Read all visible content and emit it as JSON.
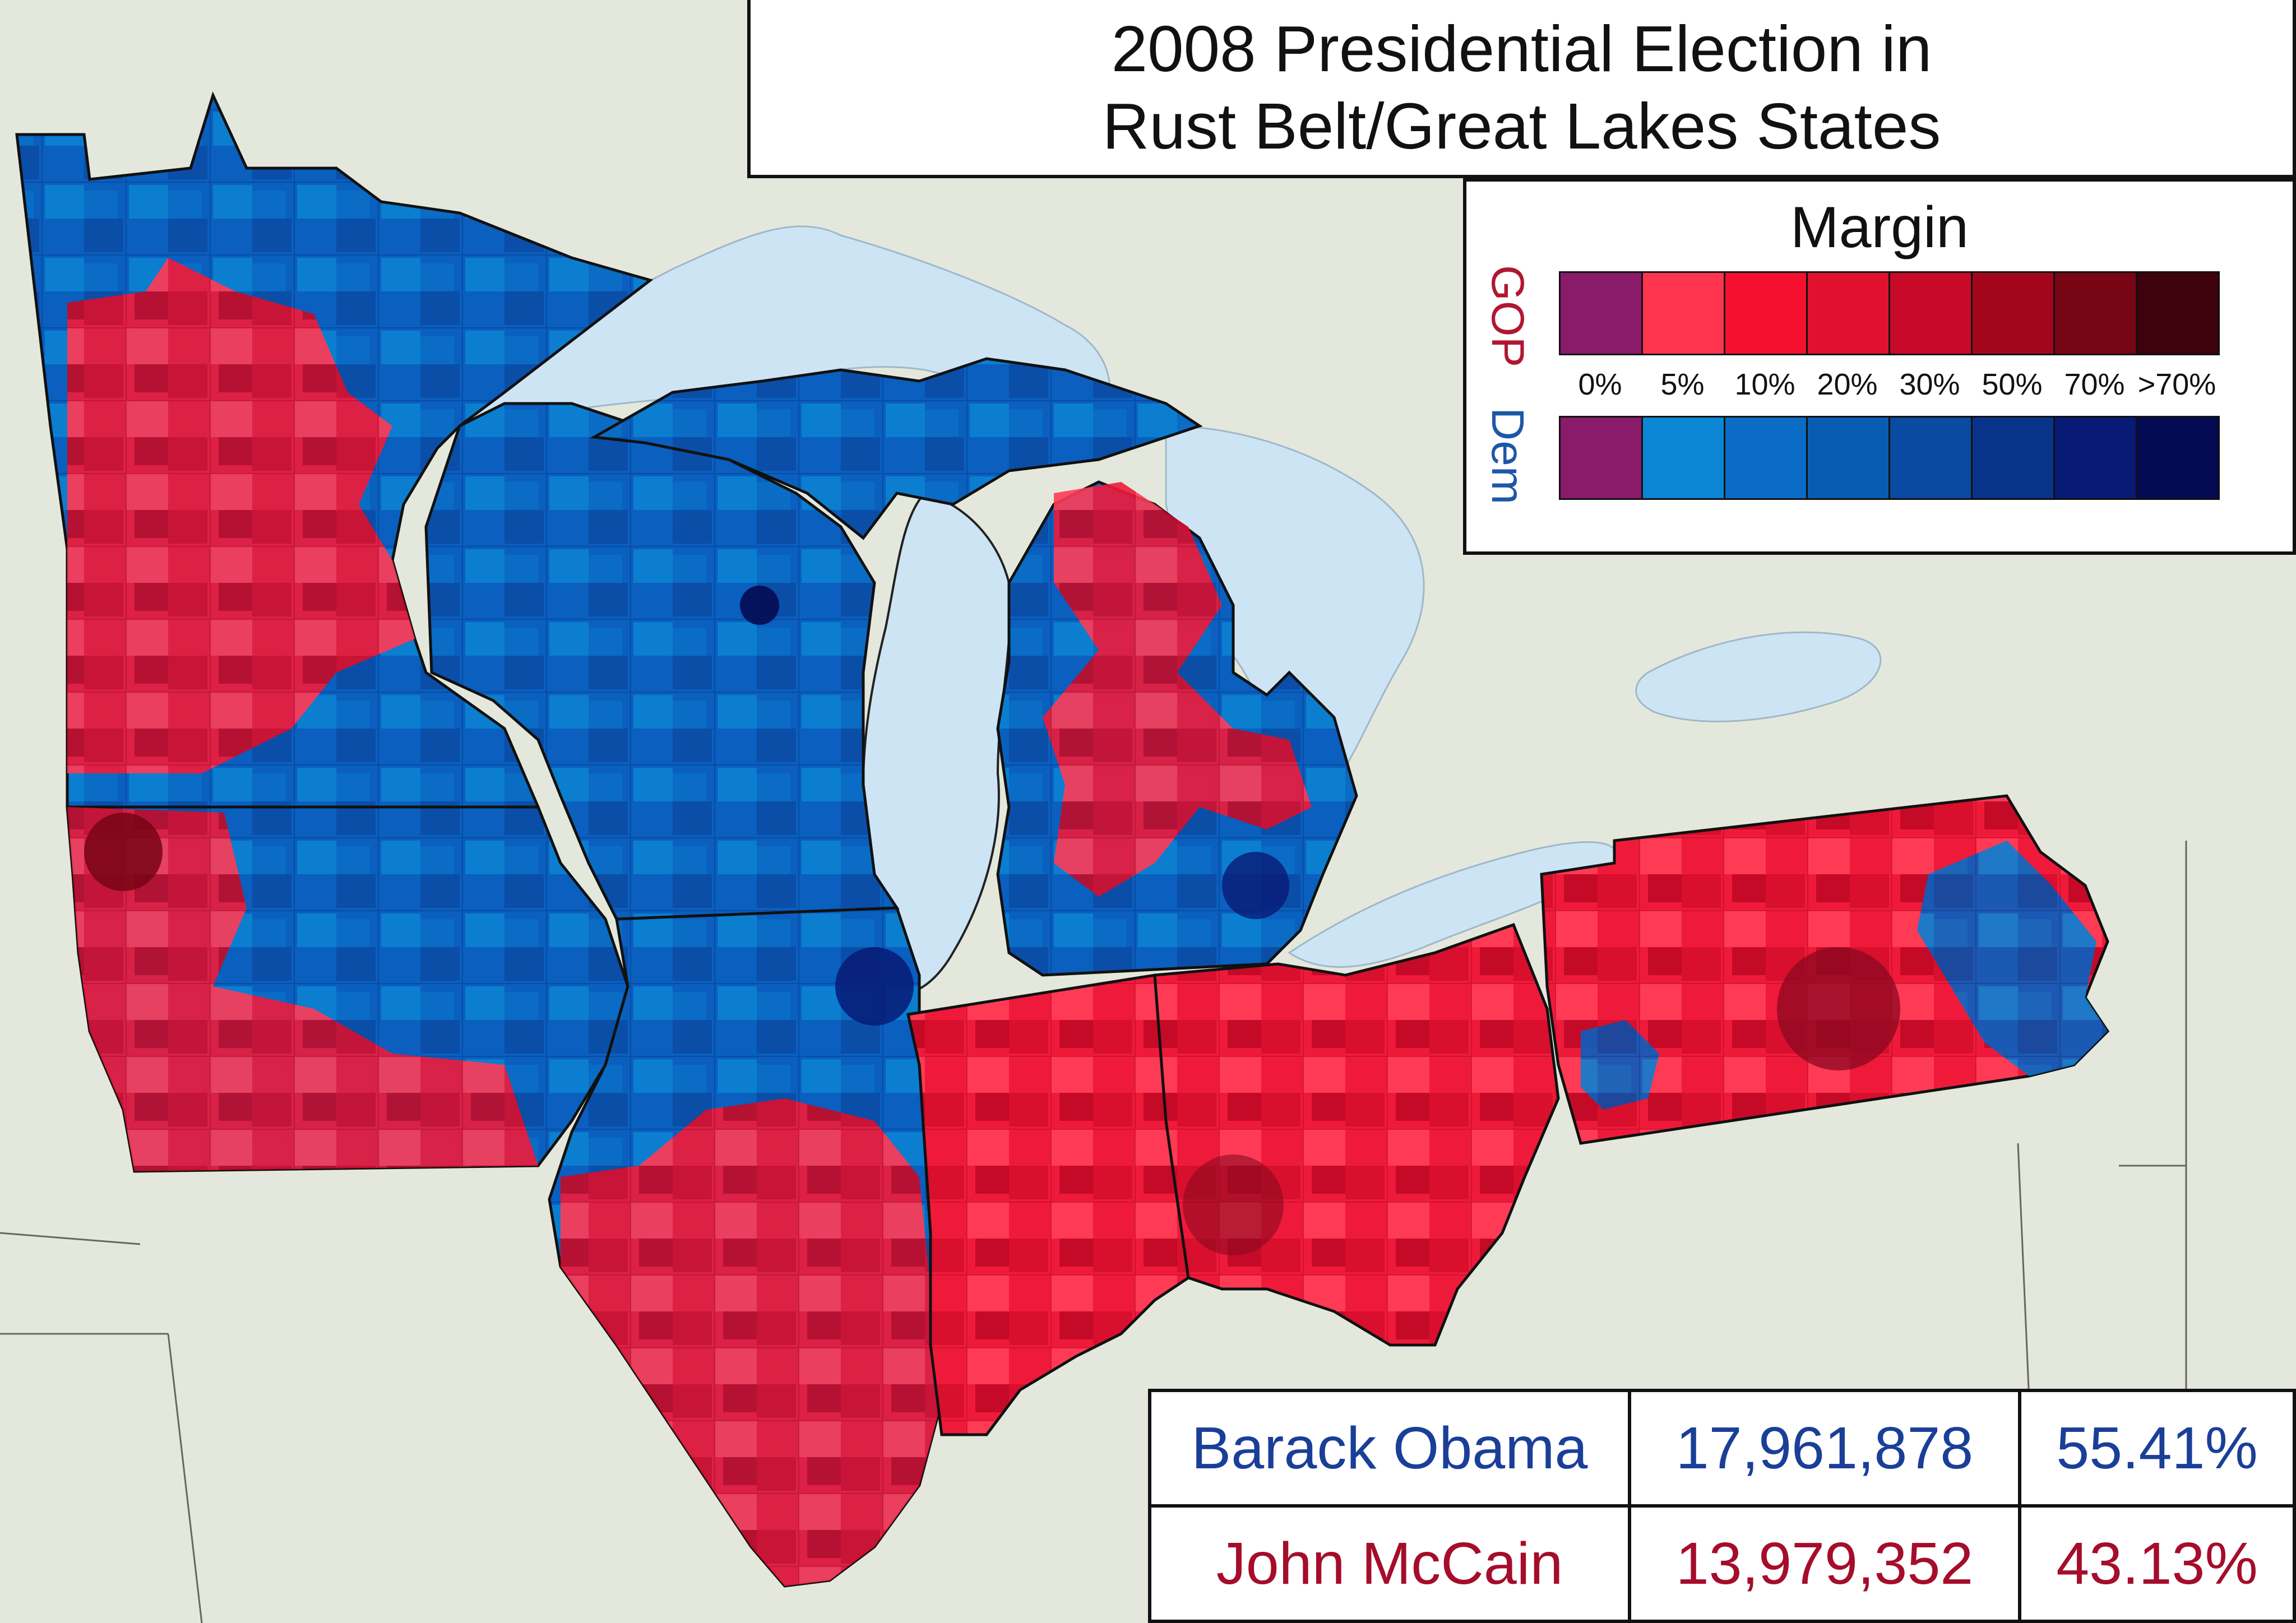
{
  "title": {
    "line1": "2008 Presidential Election in",
    "line2": "Rust Belt/Great Lakes States"
  },
  "legend": {
    "title": "Margin",
    "gop_label": "GOP",
    "dem_label": "Dem",
    "ticks": [
      "0%",
      "5%",
      "10%",
      "20%",
      "30%",
      "50%",
      "70%",
      ">70%"
    ],
    "gop_colors": [
      "#8a1a6a",
      "#ff3550",
      "#f5102f",
      "#e0102e",
      "#c80a28",
      "#a3061c",
      "#770514",
      "#3d020b"
    ],
    "dem_colors": [
      "#8a1a6a",
      "#0b87d6",
      "#0a6cc4",
      "#0a5cb2",
      "#0a4aa0",
      "#07338a",
      "#071a75",
      "#040b52"
    ]
  },
  "results": [
    {
      "candidate": "Barack Obama",
      "votes": "17,961,878",
      "percent": "55.41%",
      "color": "#1a3f98"
    },
    {
      "candidate": "John McCain",
      "votes": "13,979,352",
      "percent": "43.13%",
      "color": "#a50d2a"
    }
  ],
  "map": {
    "colors": {
      "land": "#e4e8dc",
      "water": "#cde4f5",
      "gop": "#ef1a3a",
      "dem": "#0a5fbf",
      "gop_dark": "#a90a22",
      "dem_dark": "#052a8a"
    },
    "states": [
      "Minnesota",
      "Wisconsin",
      "Michigan",
      "Iowa",
      "Illinois",
      "Indiana",
      "Ohio",
      "Pennsylvania"
    ]
  }
}
